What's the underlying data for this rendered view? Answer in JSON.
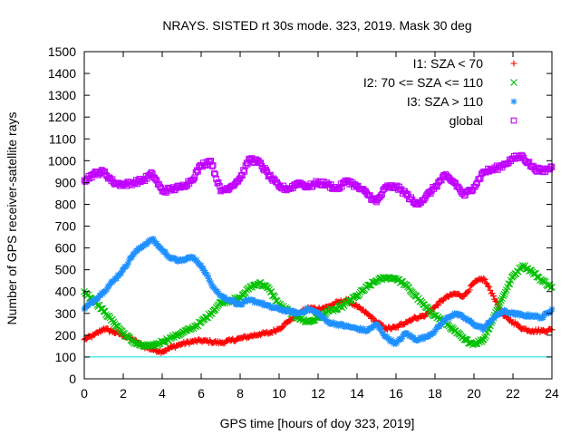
{
  "chart_data": {
    "type": "scatter",
    "title": "NRAYS. SISTED rt 30s mode. 323, 2019. Mask 30 deg",
    "xlabel": "GPS time [hours of doy 323, 2019]",
    "ylabel": "Number of GPS receiver-satellite rays",
    "xlim": [
      0,
      24
    ],
    "ylim": [
      0,
      1500
    ],
    "x_ticks": [
      "0",
      "2",
      "4",
      "6",
      "8",
      "10",
      "12",
      "14",
      "16",
      "18",
      "20",
      "22",
      "24"
    ],
    "y_ticks": [
      "0",
      "100",
      "200",
      "300",
      "400",
      "500",
      "600",
      "700",
      "800",
      "900",
      "1000",
      "1100",
      "1200",
      "1300",
      "1400",
      "1500"
    ],
    "reference_line": {
      "y": 100,
      "color": "#00e0e0"
    },
    "grid": false,
    "legend_position": "top-right",
    "series": [
      {
        "name": "I1: SZA < 70",
        "marker": "+",
        "color": "#ff0000",
        "x": [
          0,
          0.5,
          1,
          1.5,
          2,
          2.5,
          3,
          3.5,
          4,
          4.5,
          5,
          5.5,
          6,
          6.5,
          7,
          7.5,
          8,
          8.5,
          9,
          9.5,
          10,
          10.5,
          11,
          11.5,
          12,
          12.5,
          13,
          13.5,
          14,
          14.5,
          15,
          15.5,
          16,
          16.5,
          17,
          17.5,
          18,
          18.5,
          19,
          19.5,
          20,
          20.5,
          21,
          21.5,
          22,
          22.5,
          23,
          23.5,
          24
        ],
        "y": [
          180,
          200,
          230,
          215,
          200,
          180,
          150,
          135,
          125,
          145,
          160,
          170,
          175,
          170,
          165,
          175,
          185,
          195,
          205,
          210,
          230,
          265,
          300,
          325,
          320,
          330,
          350,
          360,
          330,
          300,
          260,
          230,
          235,
          260,
          280,
          290,
          330,
          370,
          390,
          380,
          440,
          460,
          380,
          290,
          260,
          230,
          220,
          220,
          225
        ]
      },
      {
        "name": "I2: 70 <= SZA <= 110",
        "marker": "x",
        "color": "#00c000",
        "x": [
          0,
          0.5,
          1,
          1.5,
          2,
          2.5,
          3,
          3.5,
          4,
          4.5,
          5,
          5.5,
          6,
          6.5,
          7,
          7.5,
          8,
          8.5,
          9,
          9.5,
          10,
          10.5,
          11,
          11.5,
          12,
          12.5,
          13,
          13.5,
          14,
          14.5,
          15,
          15.5,
          16,
          16.5,
          17,
          17.5,
          18,
          18.5,
          19,
          19.5,
          20,
          20.5,
          21,
          21.5,
          22,
          22.5,
          23,
          23.5,
          24
        ],
        "y": [
          400,
          360,
          310,
          260,
          210,
          170,
          150,
          150,
          170,
          190,
          210,
          230,
          260,
          300,
          350,
          360,
          370,
          420,
          440,
          410,
          340,
          310,
          280,
          260,
          280,
          310,
          320,
          350,
          380,
          420,
          450,
          465,
          460,
          430,
          380,
          330,
          290,
          260,
          220,
          180,
          160,
          180,
          280,
          380,
          470,
          520,
          490,
          450,
          420
        ]
      },
      {
        "name": "I3: SZA > 110",
        "marker": "*",
        "color": "#1e90ff",
        "x": [
          0,
          0.5,
          1,
          1.5,
          2,
          2.5,
          3,
          3.5,
          4,
          4.5,
          5,
          5.5,
          6,
          6.5,
          7,
          7.5,
          8,
          8.5,
          9,
          9.5,
          10,
          10.5,
          11,
          11.5,
          12,
          12.5,
          13,
          13.5,
          14,
          14.5,
          15,
          15.5,
          16,
          16.5,
          17,
          17.5,
          18,
          18.5,
          19,
          19.5,
          20,
          20.5,
          21,
          21.5,
          22,
          22.5,
          23,
          23.5,
          24
        ],
        "y": [
          320,
          360,
          400,
          450,
          500,
          570,
          610,
          640,
          590,
          550,
          540,
          560,
          520,
          440,
          380,
          360,
          340,
          360,
          350,
          330,
          320,
          310,
          300,
          320,
          300,
          260,
          250,
          240,
          230,
          220,
          250,
          190,
          160,
          210,
          180,
          190,
          220,
          270,
          300,
          280,
          250,
          230,
          280,
          310,
          300,
          290,
          290,
          280,
          320
        ]
      },
      {
        "name": "global",
        "marker": "square",
        "color": "#c000ff",
        "x": [
          0,
          0.5,
          1,
          1.5,
          2,
          2.5,
          3,
          3.5,
          4,
          4.5,
          5,
          5.5,
          6,
          6.5,
          7,
          7.5,
          8,
          8.5,
          9,
          9.5,
          10,
          10.5,
          11,
          11.5,
          12,
          12.5,
          13,
          13.5,
          14,
          14.5,
          15,
          15.5,
          16,
          16.5,
          17,
          17.5,
          18,
          18.5,
          19,
          19.5,
          20,
          20.5,
          21,
          21.5,
          22,
          22.5,
          23,
          23.5,
          24
        ],
        "y": [
          910,
          940,
          950,
          900,
          890,
          900,
          910,
          940,
          860,
          870,
          880,
          910,
          980,
          1000,
          860,
          880,
          920,
          1010,
          990,
          930,
          880,
          870,
          900,
          880,
          900,
          890,
          870,
          910,
          880,
          850,
          810,
          880,
          880,
          850,
          800,
          830,
          880,
          930,
          900,
          840,
          880,
          950,
          960,
          980,
          1010,
          1020,
          970,
          950,
          970
        ]
      }
    ]
  }
}
